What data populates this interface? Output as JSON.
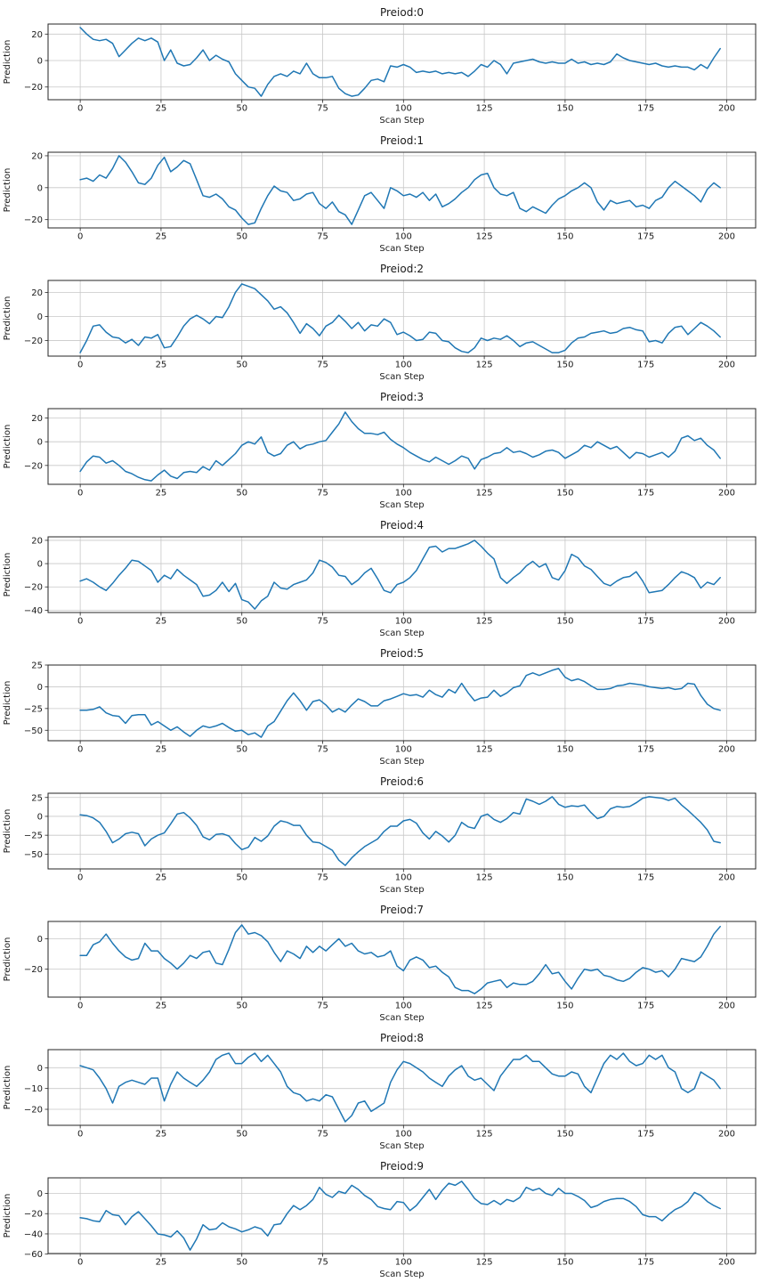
{
  "figure": {
    "xlabel": "Scan Step",
    "ylabel": "Prediction",
    "line_color": "#1f77b4",
    "grid_color": "#c8c8c8",
    "spine_color": "#262626",
    "grid": true,
    "legend": "none",
    "xticks": [
      0,
      25,
      50,
      75,
      100,
      125,
      150,
      175,
      200
    ],
    "xlim": [
      -9.95,
      208.95
    ],
    "x_start": 0,
    "x_step": 2
  },
  "chart_data": [
    {
      "type": "line",
      "title": "Preiod:0",
      "xlabel": "Scan Step",
      "ylabel": "Prediction",
      "yticks": [
        20,
        0,
        -20
      ],
      "ylim": [
        -29.6,
        27.6
      ],
      "values": [
        25,
        20,
        16,
        15,
        16,
        13,
        3,
        8,
        13,
        17,
        15,
        17,
        14,
        0,
        8,
        -2,
        -4,
        -3,
        2,
        8,
        0,
        4,
        1,
        -1,
        -10,
        -15,
        -20,
        -21,
        -27,
        -18,
        -12,
        -10,
        -12,
        -8,
        -10,
        -2,
        -10,
        -13,
        -13,
        -12,
        -21,
        -25,
        -27,
        -26,
        -21,
        -15,
        -14,
        -16,
        -4,
        -5,
        -3,
        -5,
        -9,
        -8,
        -9,
        -8,
        -10,
        -9,
        -10,
        -9,
        -12,
        -8,
        -3,
        -5,
        0,
        -3,
        -10,
        -2,
        -1,
        0,
        1,
        -1,
        -2,
        -1,
        -2,
        -2,
        1,
        -2,
        -1,
        -3,
        -2,
        -3,
        -1,
        5,
        2,
        0,
        -1,
        -2,
        -3,
        -2,
        -4,
        -5,
        -4,
        -5,
        -5,
        -7,
        -3,
        -6,
        2,
        9
      ]
    },
    {
      "type": "line",
      "title": "Preiod:1",
      "xlabel": "Scan Step",
      "ylabel": "Prediction",
      "yticks": [
        20,
        0,
        -20
      ],
      "ylim": [
        -25.2,
        22.2
      ],
      "values": [
        5,
        6,
        4,
        8,
        6,
        12,
        20,
        16,
        10,
        3,
        2,
        6,
        14,
        19,
        10,
        13,
        17,
        15,
        5,
        -5,
        -6,
        -4,
        -7,
        -12,
        -14,
        -19,
        -23,
        -22,
        -13,
        -5,
        1,
        -2,
        -3,
        -8,
        -7,
        -4,
        -3,
        -10,
        -13,
        -9,
        -15,
        -17,
        -23,
        -14,
        -5,
        -3,
        -8,
        -13,
        0,
        -2,
        -5,
        -4,
        -6,
        -3,
        -8,
        -4,
        -12,
        -10,
        -7,
        -3,
        0,
        5,
        8,
        9,
        0,
        -4,
        -5,
        -3,
        -13,
        -15,
        -12,
        -14,
        -16,
        -11,
        -7,
        -5,
        -2,
        0,
        3,
        0,
        -9,
        -14,
        -8,
        -10,
        -9,
        -8,
        -12,
        -11,
        -13,
        -8,
        -6,
        0,
        4,
        1,
        -2,
        -5,
        -9,
        -1,
        3,
        0
      ]
    },
    {
      "type": "line",
      "title": "Preiod:2",
      "xlabel": "Scan Step",
      "ylabel": "Prediction",
      "yticks": [
        20,
        0,
        -20
      ],
      "ylim": [
        -32.9,
        29.9
      ],
      "values": [
        -30,
        -20,
        -8,
        -7,
        -13,
        -17,
        -18,
        -22,
        -19,
        -24,
        -17,
        -18,
        -15,
        -26,
        -25,
        -17,
        -8,
        -2,
        1,
        -2,
        -6,
        0,
        -1,
        8,
        20,
        27,
        25,
        23,
        18,
        13,
        6,
        8,
        3,
        -5,
        -14,
        -6,
        -10,
        -16,
        -8,
        -5,
        1,
        -4,
        -10,
        -5,
        -12,
        -7,
        -8,
        -2,
        -5,
        -15,
        -13,
        -16,
        -20,
        -19,
        -13,
        -14,
        -20,
        -21,
        -26,
        -29,
        -30,
        -26,
        -18,
        -20,
        -18,
        -19,
        -16,
        -20,
        -25,
        -22,
        -21,
        -24,
        -27,
        -30,
        -30,
        -28,
        -22,
        -18,
        -17,
        -14,
        -13,
        -12,
        -14,
        -13,
        -10,
        -9,
        -11,
        -12,
        -21,
        -20,
        -22,
        -14,
        -9,
        -8,
        -15,
        -10,
        -5,
        -8,
        -12,
        -17
      ]
    },
    {
      "type": "line",
      "title": "Preiod:3",
      "xlabel": "Scan Step",
      "ylabel": "Prediction",
      "yticks": [
        20,
        0,
        -20
      ],
      "ylim": [
        -35.9,
        27.9
      ],
      "values": [
        -25,
        -17,
        -12,
        -13,
        -18,
        -16,
        -20,
        -25,
        -27,
        -30,
        -32,
        -33,
        -28,
        -24,
        -29,
        -31,
        -26,
        -25,
        -26,
        -21,
        -24,
        -16,
        -20,
        -15,
        -10,
        -3,
        0,
        -2,
        4,
        -9,
        -12,
        -10,
        -3,
        0,
        -6,
        -3,
        -2,
        0,
        1,
        8,
        15,
        25,
        17,
        11,
        7,
        7,
        6,
        8,
        2,
        -2,
        -5,
        -9,
        -12,
        -15,
        -17,
        -13,
        -16,
        -19,
        -16,
        -12,
        -14,
        -23,
        -15,
        -13,
        -10,
        -9,
        -5,
        -9,
        -8,
        -10,
        -13,
        -11,
        -8,
        -7,
        -9,
        -14,
        -11,
        -8,
        -3,
        -5,
        0,
        -3,
        -6,
        -4,
        -9,
        -14,
        -9,
        -10,
        -13,
        -11,
        -9,
        -13,
        -8,
        3,
        5,
        1,
        3,
        -3,
        -7,
        -14
      ]
    },
    {
      "type": "line",
      "title": "Preiod:4",
      "xlabel": "Scan Step",
      "ylabel": "Prediction",
      "yticks": [
        20,
        0,
        -20,
        -40
      ],
      "ylim": [
        -42.0,
        23.0
      ],
      "values": [
        -15,
        -13,
        -16,
        -20,
        -23,
        -17,
        -10,
        -4,
        3,
        2,
        -2,
        -6,
        -16,
        -10,
        -13,
        -5,
        -10,
        -14,
        -18,
        -28,
        -27,
        -23,
        -16,
        -24,
        -17,
        -31,
        -33,
        -39,
        -32,
        -28,
        -16,
        -21,
        -22,
        -18,
        -16,
        -14,
        -8,
        3,
        1,
        -3,
        -10,
        -11,
        -18,
        -14,
        -8,
        -4,
        -13,
        -23,
        -25,
        -18,
        -16,
        -12,
        -6,
        4,
        14,
        15,
        10,
        13,
        13,
        15,
        17,
        20,
        15,
        9,
        4,
        -12,
        -17,
        -12,
        -8,
        -2,
        2,
        -3,
        0,
        -12,
        -14,
        -6,
        8,
        5,
        -2,
        -5,
        -11,
        -17,
        -19,
        -15,
        -12,
        -11,
        -7,
        -15,
        -25,
        -24,
        -23,
        -18,
        -12,
        -7,
        -9,
        -12,
        -21,
        -16,
        -18,
        -12
      ]
    },
    {
      "type": "line",
      "title": "Preiod:5",
      "xlabel": "Scan Step",
      "ylabel": "Prediction",
      "yticks": [
        25,
        0,
        -25,
        -50
      ],
      "ylim": [
        -62.0,
        25.0
      ],
      "values": [
        -27,
        -27,
        -26,
        -23,
        -30,
        -33,
        -34,
        -42,
        -33,
        -32,
        -32,
        -44,
        -40,
        -45,
        -50,
        -46,
        -52,
        -57,
        -50,
        -45,
        -47,
        -45,
        -42,
        -47,
        -51,
        -50,
        -55,
        -53,
        -58,
        -45,
        -40,
        -28,
        -16,
        -7,
        -16,
        -27,
        -17,
        -15,
        -21,
        -29,
        -25,
        -29,
        -21,
        -14,
        -17,
        -22,
        -22,
        -16,
        -14,
        -11,
        -8,
        -10,
        -9,
        -12,
        -4,
        -9,
        -12,
        -3,
        -7,
        4,
        -7,
        -16,
        -13,
        -12,
        -4,
        -11,
        -7,
        -1,
        1,
        13,
        16,
        13,
        16,
        19,
        21,
        11,
        7,
        9,
        6,
        1,
        -3,
        -3,
        -2,
        1,
        2,
        4,
        3,
        2,
        0,
        -1,
        -2,
        -1,
        -3,
        -2,
        4,
        3,
        -10,
        -20,
        -25,
        -27
      ]
    },
    {
      "type": "line",
      "title": "Preiod:6",
      "xlabel": "Scan Step",
      "ylabel": "Prediction",
      "yticks": [
        25,
        0,
        -25,
        -50
      ],
      "ylim": [
        -69.6,
        30.6
      ],
      "values": [
        2,
        1,
        -2,
        -8,
        -20,
        -35,
        -30,
        -23,
        -21,
        -23,
        -39,
        -30,
        -25,
        -22,
        -10,
        3,
        5,
        -2,
        -12,
        -27,
        -31,
        -24,
        -23,
        -26,
        -36,
        -44,
        -41,
        -28,
        -33,
        -26,
        -13,
        -6,
        -8,
        -12,
        -12,
        -25,
        -34,
        -35,
        -40,
        -45,
        -58,
        -65,
        -55,
        -47,
        -40,
        -35,
        -30,
        -20,
        -13,
        -13,
        -6,
        -4,
        -9,
        -22,
        -30,
        -20,
        -26,
        -34,
        -25,
        -8,
        -14,
        -16,
        0,
        3,
        -4,
        -8,
        -3,
        5,
        3,
        23,
        20,
        16,
        20,
        26,
        16,
        12,
        14,
        13,
        15,
        5,
        -3,
        0,
        10,
        13,
        12,
        13,
        18,
        24,
        26,
        25,
        24,
        21,
        24,
        15,
        8,
        0,
        -8,
        -18,
        -33,
        -35
      ]
    },
    {
      "type": "line",
      "title": "Preiod:7",
      "xlabel": "Scan Step",
      "ylabel": "Prediction",
      "yticks": [
        0,
        -20
      ],
      "ylim": [
        -38.3,
        11.3
      ],
      "values": [
        -11,
        -11,
        -4,
        -2,
        3,
        -3,
        -8,
        -12,
        -14,
        -13,
        -3,
        -8,
        -8,
        -13,
        -16,
        -20,
        -16,
        -11,
        -13,
        -9,
        -8,
        -16,
        -17,
        -7,
        4,
        9,
        3,
        4,
        2,
        -2,
        -9,
        -15,
        -8,
        -10,
        -13,
        -5,
        -9,
        -5,
        -8,
        -4,
        0,
        -5,
        -3,
        -8,
        -10,
        -9,
        -12,
        -11,
        -8,
        -18,
        -21,
        -14,
        -12,
        -14,
        -19,
        -18,
        -22,
        -25,
        -32,
        -34,
        -34,
        -36,
        -33,
        -29,
        -28,
        -27,
        -32,
        -29,
        -30,
        -30,
        -28,
        -23,
        -17,
        -23,
        -22,
        -28,
        -33,
        -26,
        -20,
        -21,
        -20,
        -24,
        -25,
        -27,
        -28,
        -26,
        -22,
        -19,
        -20,
        -22,
        -21,
        -25,
        -20,
        -13,
        -14,
        -15,
        -12,
        -5,
        3,
        8
      ]
    },
    {
      "type": "line",
      "title": "Preiod:8",
      "xlabel": "Scan Step",
      "ylabel": "Prediction",
      "yticks": [
        0,
        -10,
        -20
      ],
      "ylim": [
        -27.7,
        8.7
      ],
      "values": [
        1,
        0,
        -1,
        -5,
        -10,
        -17,
        -9,
        -7,
        -6,
        -7,
        -8,
        -5,
        -5,
        -16,
        -8,
        -2,
        -5,
        -7,
        -9,
        -6,
        -2,
        4,
        6,
        7,
        2,
        2,
        5,
        7,
        3,
        6,
        2,
        -2,
        -9,
        -12,
        -13,
        -16,
        -15,
        -16,
        -13,
        -14,
        -20,
        -26,
        -23,
        -17,
        -16,
        -21,
        -19,
        -17,
        -7,
        -1,
        3,
        2,
        0,
        -2,
        -5,
        -7,
        -9,
        -4,
        -1,
        1,
        -4,
        -6,
        -5,
        -8,
        -11,
        -4,
        0,
        4,
        4,
        6,
        3,
        3,
        0,
        -3,
        -4,
        -4,
        -2,
        -3,
        -9,
        -12,
        -5,
        2,
        6,
        4,
        7,
        3,
        1,
        2,
        6,
        4,
        6,
        0,
        -2,
        -10,
        -12,
        -10,
        -2,
        -4,
        -6,
        -10
      ]
    },
    {
      "type": "line",
      "title": "Preiod:9",
      "xlabel": "Scan Step",
      "ylabel": "Prediction",
      "yticks": [
        0,
        -20,
        -40,
        -60
      ],
      "ylim": [
        -59.4,
        15.4
      ],
      "values": [
        -24,
        -25,
        -27,
        -28,
        -17,
        -21,
        -22,
        -31,
        -23,
        -18,
        -25,
        -32,
        -40,
        -41,
        -43,
        -37,
        -44,
        -56,
        -45,
        -31,
        -36,
        -35,
        -29,
        -33,
        -35,
        -38,
        -36,
        -33,
        -35,
        -42,
        -31,
        -30,
        -20,
        -12,
        -16,
        -12,
        -6,
        6,
        -1,
        -4,
        2,
        0,
        8,
        4,
        -2,
        -6,
        -13,
        -15,
        -16,
        -8,
        -9,
        -17,
        -12,
        -4,
        4,
        -6,
        3,
        10,
        8,
        12,
        4,
        -5,
        -10,
        -11,
        -7,
        -11,
        -6,
        -8,
        -4,
        6,
        3,
        5,
        0,
        -2,
        5,
        0,
        0,
        -3,
        -7,
        -14,
        -12,
        -8,
        -6,
        -5,
        -5,
        -8,
        -13,
        -21,
        -23,
        -23,
        -27,
        -21,
        -16,
        -13,
        -8,
        1,
        -2,
        -8,
        -12,
        -15
      ]
    }
  ]
}
